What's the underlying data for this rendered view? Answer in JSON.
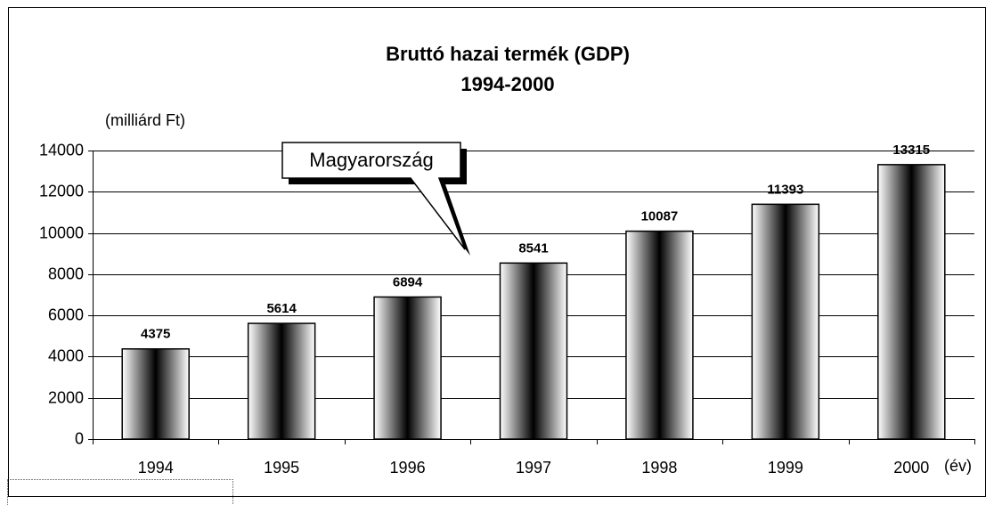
{
  "chart_data": {
    "type": "bar",
    "title": "Bruttó hazai termék (GDP)",
    "subtitle": "1994-2000",
    "y_label": "(milliárd Ft)",
    "x_label": "(év)",
    "annotation": "Magyarország",
    "categories": [
      "1994",
      "1995",
      "1996",
      "1997",
      "1998",
      "1999",
      "2000"
    ],
    "values": [
      4375,
      5614,
      6894,
      8541,
      10087,
      11393,
      13315
    ],
    "color": "#000000",
    "ylim": [
      0,
      14000
    ],
    "yticks": [
      0,
      2000,
      4000,
      6000,
      8000,
      10000,
      12000,
      14000
    ],
    "grid": true
  }
}
